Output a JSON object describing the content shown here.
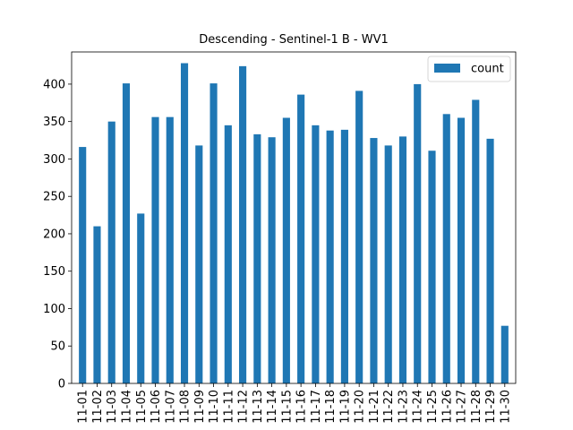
{
  "chart_data": {
    "type": "bar",
    "title": "Descending - Sentinel-1 B - WV1",
    "xlabel": "",
    "ylabel": "",
    "ylim": [
      0,
      443
    ],
    "yticks": [
      0,
      50,
      100,
      150,
      200,
      250,
      300,
      350,
      400
    ],
    "grid": false,
    "legend_position": "top-right",
    "bar_color": "#1f77b4",
    "categories": [
      "11-01",
      "11-02",
      "11-03",
      "11-04",
      "11-05",
      "11-06",
      "11-07",
      "11-08",
      "11-09",
      "11-10",
      "11-11",
      "11-12",
      "11-13",
      "11-14",
      "11-15",
      "11-16",
      "11-17",
      "11-18",
      "11-19",
      "11-20",
      "11-21",
      "11-22",
      "11-23",
      "11-24",
      "11-25",
      "11-26",
      "11-27",
      "11-28",
      "11-29",
      "11-30"
    ],
    "series": [
      {
        "name": "count",
        "values": [
          316,
          210,
          350,
          401,
          227,
          356,
          356,
          428,
          318,
          401,
          345,
          424,
          333,
          329,
          355,
          386,
          345,
          338,
          339,
          391,
          328,
          318,
          330,
          400,
          311,
          360,
          355,
          379,
          327,
          77
        ]
      }
    ]
  }
}
